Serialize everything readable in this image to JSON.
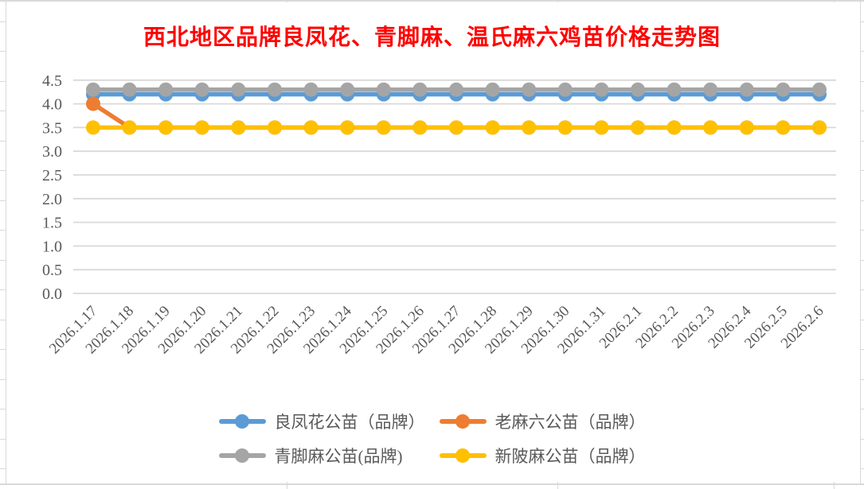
{
  "chart_data": {
    "type": "line",
    "title": "西北地区品牌良凤花、青脚麻、温氏麻六鸡苗价格走势图",
    "title_color": "#FF0000",
    "axis_text_color": "#595959",
    "gridline_color": "#D9D9D9",
    "grid": true,
    "marker": "circle",
    "legend_position": "bottom",
    "ylim": [
      0.0,
      4.5
    ],
    "ytick_step": 0.5,
    "ytick_labels": [
      "4.5",
      "4.0",
      "3.5",
      "3.0",
      "2.5",
      "2.0",
      "1.5",
      "1.0",
      "0.5",
      "0.0"
    ],
    "categories": [
      "2026.1.17",
      "2026.1.18",
      "2026.1.19",
      "2026.1.20",
      "2026.1.21",
      "2026.1.22",
      "2026.1.23",
      "2026.1.24",
      "2026.1.25",
      "2026.1.26",
      "2026.1.27",
      "2026.1.28",
      "2026.1.29",
      "2026.1.30",
      "2026.1.31",
      "2026.2.1",
      "2026.2.2",
      "2026.2.3",
      "2026.2.4",
      "2026.2.5",
      "2026.2.6"
    ],
    "series": [
      {
        "name": "良凤花公苗（品牌）",
        "color": "#5B9BD5",
        "values": [
          4.2,
          4.2,
          4.2,
          4.2,
          4.2,
          4.2,
          4.2,
          4.2,
          4.2,
          4.2,
          4.2,
          4.2,
          4.2,
          4.2,
          4.2,
          4.2,
          4.2,
          4.2,
          4.2,
          4.2,
          4.2
        ]
      },
      {
        "name": "老麻六公苗（品牌）",
        "color": "#ED7D31",
        "values": [
          4.0,
          3.5,
          3.5,
          3.5,
          3.5,
          3.5,
          3.5,
          3.5,
          3.5,
          3.5,
          3.5,
          3.5,
          3.5,
          3.5,
          3.5,
          3.5,
          3.5,
          3.5,
          3.5,
          3.5,
          3.5
        ]
      },
      {
        "name": "青脚麻公苗(品牌)",
        "color": "#A5A5A5",
        "values": [
          4.3,
          4.3,
          4.3,
          4.3,
          4.3,
          4.3,
          4.3,
          4.3,
          4.3,
          4.3,
          4.3,
          4.3,
          4.3,
          4.3,
          4.3,
          4.3,
          4.3,
          4.3,
          4.3,
          4.3,
          4.3
        ]
      },
      {
        "name": "新陂麻公苗（品牌）",
        "color": "#FFC000",
        "values": [
          3.5,
          3.5,
          3.5,
          3.5,
          3.5,
          3.5,
          3.5,
          3.5,
          3.5,
          3.5,
          3.5,
          3.5,
          3.5,
          3.5,
          3.5,
          3.5,
          3.5,
          3.5,
          3.5,
          3.5,
          3.5
        ]
      }
    ]
  }
}
